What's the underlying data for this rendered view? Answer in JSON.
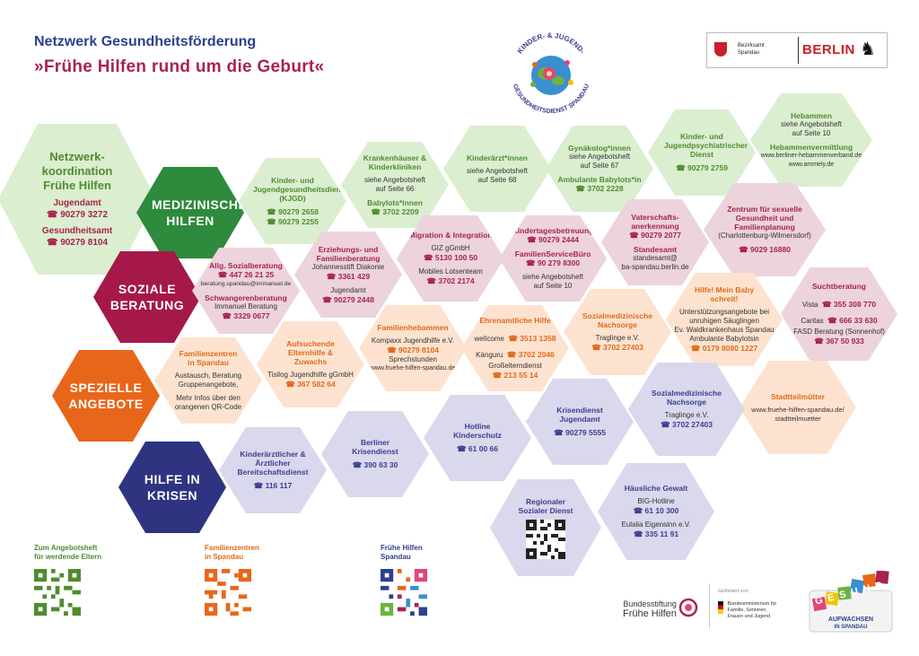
{
  "header": {
    "network": "Netzwerk Gesundheitsförderung",
    "title": "»Frühe Hilfen rund um die Geburt«"
  },
  "logos": {
    "kjgd_top": "KINDER- & JUGEND-",
    "kjgd_bottom": "GESUNDHEITSDIENST SPANDAU",
    "bezirksamt_line1": "Bezirksamt",
    "bezirksamt_line2": "Spandau",
    "berlin": "BERLIN",
    "bundesstiftung_line1": "Bundesstiftung",
    "bundesstiftung_line2": "Frühe Hilfen",
    "gefoerdert": "Gefördert von:",
    "bmfsfj": "Bundesministerium für Familie, Senioren, Frauen und Jugend",
    "gesund_word": "GESUND",
    "gesund_sub1": "AUFWACHSEN",
    "gesund_sub2": "IN SPANDAU"
  },
  "categories": {
    "medizinisch": "MEDIZINISCHE HILFEN",
    "sozial": "SOZIALE BERATUNG",
    "speziell": "SPEZIELLE ANGEBOTE",
    "krisen": "HILFE IN KRISEN"
  },
  "netzwerk": {
    "title": "Netzwerk-koordination Frühe Hilfen",
    "jugendamt": "Jugendamt",
    "jugendamt_phone": "☎ 90279 3272",
    "gesundheitsamt": "Gesundheitsamt",
    "gesundheitsamt_phone": "☎ 90279 8104"
  },
  "colors": {
    "green": "#4f8c2f",
    "pink": "#a8234f",
    "orange": "#e06a1c",
    "navy": "#2e3f8f",
    "medizin_hex": "#2e8a3c",
    "sozial_hex": "#a5184a",
    "speziell_hex": "#e8661a",
    "krisen_hex": "#2f3480"
  },
  "cells": {
    "kjgd": {
      "title": "Kinder- und Jugendgesundheitsdienst (KJGD)",
      "p1": "☎ 90279 2658",
      "p2": "☎ 90279 2255"
    },
    "kranken": {
      "title": "Krankenhäuser & Kinderkliniken",
      "s1": "siehe Angebotsheft",
      "s2": "auf Seite 66",
      "sub": "Babylots*innen",
      "p1": "☎ 3702 2209"
    },
    "kinderaerzt": {
      "title": "Kinderärzt*innen",
      "s1": "siehe Angebotsheft",
      "s2": "auf Seite 68"
    },
    "gyn": {
      "title": "Gynäkolog*innen",
      "s1": "siehe Angebotsheft",
      "s2": "auf Seite 67",
      "sub": "Ambulante Babylots*in",
      "p1": "☎ 3702 2228"
    },
    "kjpd": {
      "title": "Kinder- und Jugendpsychiatrischer Dienst",
      "p1": "☎ 90279 2759"
    },
    "hebammen": {
      "title": "Hebammen",
      "s1": "siehe Angebotsheft",
      "s2": "auf Seite 10",
      "sub": "Hebammenvermittlung",
      "s3": "www.berliner-hebammenverband.de",
      "s4": "www.ammely.de"
    },
    "allg": {
      "title": "Allg. Sozialberatung",
      "p1": "☎ 447 26 21 25",
      "s1": "beratung.spandau@immanuel.de",
      "sub": "Schwangerenberatung",
      "s2": "Immanuel Beratung",
      "p2": "☎ 3329 0677"
    },
    "erzieh": {
      "title": "Erziehungs- und Familienberatung",
      "s1": "Johannesstift Diakonie",
      "p1": "☎ 3361 429",
      "s2": "Jugendamt",
      "p2": "☎ 90279 2448"
    },
    "migration": {
      "title": "Migration & Integration",
      "s1": "GIZ gGmbH",
      "p1": "☎ 5130 100 50",
      "s2": "Mobiles Lotsenteam",
      "p2": "☎ 3702 2174"
    },
    "kita": {
      "title": "Kindertagesbetreuung",
      "p1": "☎ 90279 2444",
      "sub": "FamilienServiceBüro",
      "p2": "☎ 90 279 8300",
      "s1": "siehe Angebotsheft",
      "s2": "auf Seite 10"
    },
    "vater": {
      "title": "Vaterschafts-anerkennung",
      "p1": "☎ 90279 2077",
      "sub": "Standesamt",
      "s1": "standesamt@",
      "s2": "ba-spandau.berlin.de"
    },
    "zentrum": {
      "title": "Zentrum für sexuelle Gesundheit und Familienplanung",
      "s1": "(Charlottenburg-Wilmersdorf)",
      "p1": "☎ 9029 16880"
    },
    "familienzentren": {
      "title": "Familienzentren in Spandau",
      "s1": "Austausch, Beratung",
      "s2": "Gruppenangebote,",
      "s3": "Mehr Infos über den",
      "s4": "orangenen QR-Code"
    },
    "aufsuchende": {
      "title": "Aufsuchende Elternhilfe & Zuwachs",
      "s1": "Tisilog Jugendhilfe gGmbH",
      "p1": "☎ 367 582 64"
    },
    "famheb": {
      "title": "Familienhebammen",
      "s1": "Kompaxx Jugendhilfe e.V.",
      "p1": "☎ 90279 8104",
      "s2": "Sprechstunden",
      "s3": "www.fruehe-hilfen-spandau.de"
    },
    "ehrenamt": {
      "title": "Ehrenamtliche Hilfe",
      "s1": "wellcome",
      "p1": "☎ 3513 1358",
      "s2": "Känguru",
      "p2": "☎ 3702 2046",
      "s3": "Großelterndienst",
      "p3": "☎ 213 55 14"
    },
    "sozmed1": {
      "title": "Sozialmedizinische Nachsorge",
      "s1": "Traglinge e.V.",
      "p1": "☎ 3702 27403"
    },
    "baby": {
      "title": "Hilfe! Mein Baby schreit!",
      "s1": "Unterstützungsangebote bei",
      "s2": "unruhigen Säuglingen",
      "s3": "Ev. Waldkrankenhaus Spandau",
      "s4": "Ambulante Babylotsin",
      "p1": "☎ 0179 8080 1227"
    },
    "sucht": {
      "title": "Suchtberatung",
      "s1": "Vista",
      "p1": "☎ 355 308 770",
      "s2": "Caritas",
      "p2": "☎ 666 33 630",
      "s3": "FASD Beratung (Sonnenhof)",
      "p3": "☎ 367 50 933"
    },
    "stadtteil": {
      "title": "Stadtteilmütter",
      "s1": "www.fruehe-hilfen-spandau.de/",
      "s2": "stadtteilmuetter"
    },
    "kinderarzt_dienst": {
      "title": "Kinderärztlicher & Ärztlicher Bereitschaftsdienst",
      "p1": "☎ 116 117"
    },
    "krisendienst": {
      "title": "Berliner Krisendienst",
      "p1": "☎ 390 63 30"
    },
    "hotline": {
      "title": "Hotline Kinderschutz",
      "p1": "☎ 61 00 66"
    },
    "krisendienst_ja": {
      "title": "Krisendienst Jugendamt",
      "p1": "☎ 90279 5555"
    },
    "sozmed2": {
      "title": "Sozialmedizinische Nachsorge",
      "s1": "Traglinge e.V.",
      "p1": "☎ 3702 27403"
    },
    "regional": {
      "title": "Regionaler Sozialer Dienst"
    },
    "gewalt": {
      "title": "Häusliche Gewalt",
      "s1": "BIG-Hotline",
      "p1": "☎ 61 10 300",
      "s2": "Eulalia Eigensinn e.V.",
      "p2": "☎ 335 11 91"
    }
  },
  "qr": {
    "angebotsheft_1": "Zum Angebotsheft",
    "angebotsheft_2": "für werdende Eltern",
    "familienzentren_1": "Familienzentren",
    "familienzentren_2": "in Spandau",
    "fruehe_1": "Frühe Hilfen",
    "fruehe_2": "Spandau"
  }
}
